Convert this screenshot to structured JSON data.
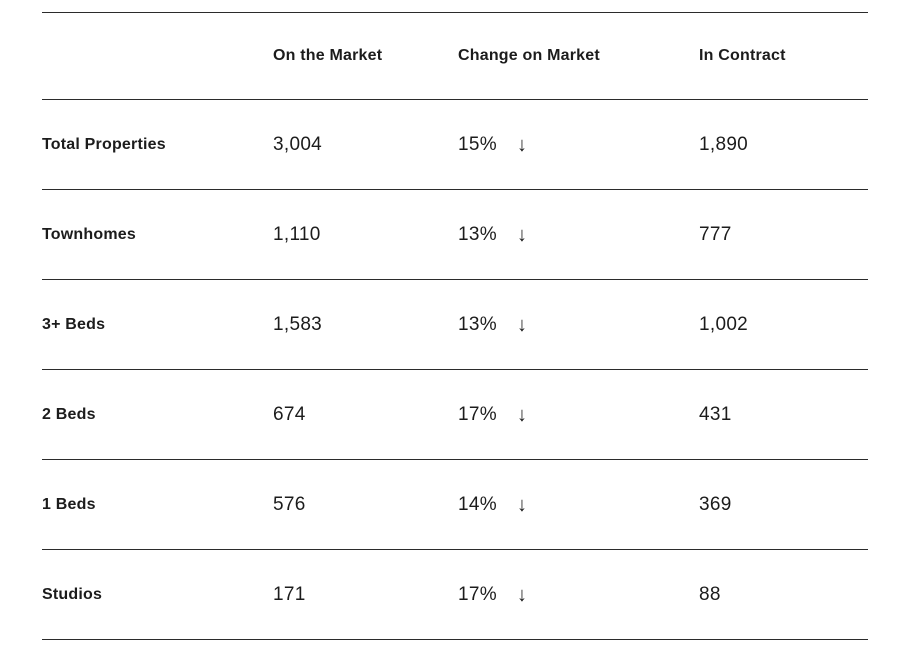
{
  "table": {
    "headers": {
      "col1": "",
      "col2": "On the Market",
      "col3": "Change on Market",
      "col4": "In Contract"
    },
    "rows": [
      {
        "label": "Total Properties",
        "on_market": "3,004",
        "change": "15%",
        "in_contract": "1,890"
      },
      {
        "label": "Townhomes",
        "on_market": "1,110",
        "change": "13%",
        "in_contract": "777"
      },
      {
        "label": "3+ Beds",
        "on_market": "1,583",
        "change": "13%",
        "in_contract": "1,002"
      },
      {
        "label": "2 Beds",
        "on_market": "674",
        "change": "17%",
        "in_contract": "431"
      },
      {
        "label": "1 Beds",
        "on_market": "576",
        "change": "14%",
        "in_contract": "369"
      },
      {
        "label": "Studios",
        "on_market": "171",
        "change": "17%",
        "in_contract": "88"
      }
    ],
    "icons": {
      "down_arrow": "↓"
    }
  },
  "colors": {
    "text": "#1c1c1c",
    "border": "#2b2b2b",
    "background": "#ffffff"
  },
  "chart_data": {
    "type": "table",
    "columns": [
      "",
      "On the Market",
      "Change on Market",
      "In Contract"
    ],
    "rows": [
      {
        "category": "Total Properties",
        "on_the_market": 3004,
        "change_on_market_pct": -15,
        "in_contract": 1890
      },
      {
        "category": "Townhomes",
        "on_the_market": 1110,
        "change_on_market_pct": -13,
        "in_contract": 777
      },
      {
        "category": "3+ Beds",
        "on_the_market": 1583,
        "change_on_market_pct": -13,
        "in_contract": 1002
      },
      {
        "category": "2 Beds",
        "on_the_market": 674,
        "change_on_market_pct": -17,
        "in_contract": 431
      },
      {
        "category": "1 Beds",
        "on_the_market": 576,
        "change_on_market_pct": -14,
        "in_contract": 369
      },
      {
        "category": "Studios",
        "on_the_market": 171,
        "change_on_market_pct": -17,
        "in_contract": 88
      }
    ],
    "notes": "Down arrows indicate a decrease in Change on Market column"
  }
}
